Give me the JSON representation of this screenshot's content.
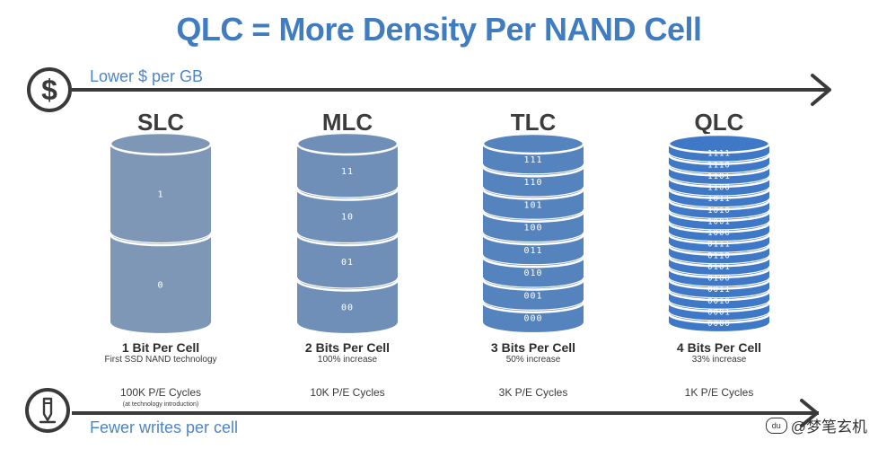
{
  "title": "QLC = More Density Per NAND Cell",
  "top_arrow": {
    "label": "Lower $ per GB",
    "icon": "dollar-icon"
  },
  "bottom_arrow": {
    "label": "Fewer writes per cell",
    "icon": "pencil-icon"
  },
  "colors": {
    "title": "#3f7cc0",
    "slc": "#7f97b6",
    "mlc": "#6f8fb8",
    "tlc": "#5583be",
    "qlc": "#3f78c6"
  },
  "columns": [
    {
      "name": "SLC",
      "bits_label": "1 Bit Per Cell",
      "description": "First SSD NAND technology",
      "cycles": "100K P/E Cycles",
      "note": "(at technology introduction)",
      "labels": [
        "1",
        "0"
      ]
    },
    {
      "name": "MLC",
      "bits_label": "2 Bits Per Cell",
      "description": "100% increase",
      "cycles": "10K P/E Cycles",
      "note": "",
      "labels": [
        "11",
        "10",
        "01",
        "00"
      ]
    },
    {
      "name": "TLC",
      "bits_label": "3 Bits Per Cell",
      "description": "50% increase",
      "cycles": "3K P/E Cycles",
      "note": "",
      "labels": [
        "111",
        "110",
        "101",
        "100",
        "011",
        "010",
        "001",
        "000"
      ]
    },
    {
      "name": "QLC",
      "bits_label": "4 Bits Per Cell",
      "description": "33% increase",
      "cycles": "1K P/E Cycles",
      "note": "",
      "labels": [
        "1111",
        "1110",
        "1101",
        "1100",
        "1011",
        "1010",
        "1001",
        "1000",
        "0111",
        "0110",
        "0101",
        "0100",
        "0011",
        "0010",
        "0001",
        "0000"
      ]
    }
  ],
  "watermark": {
    "logo": "du",
    "text": "@梦笔玄机"
  }
}
